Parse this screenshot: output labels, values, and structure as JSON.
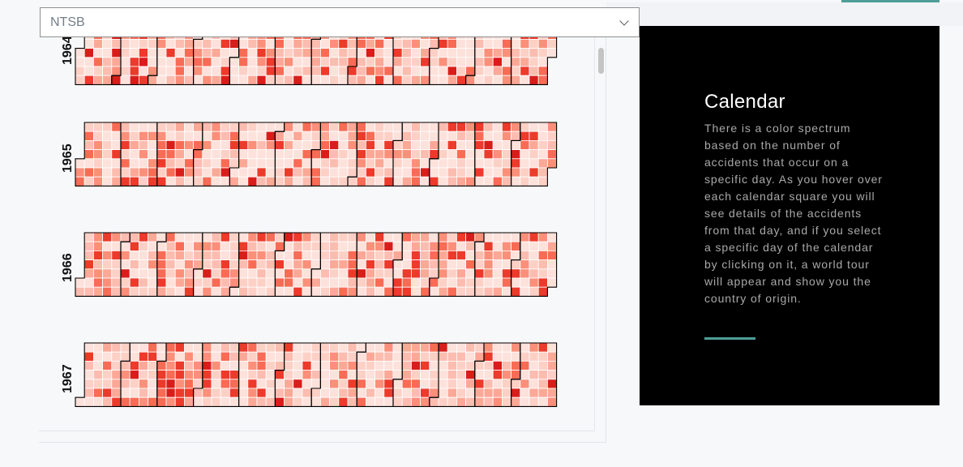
{
  "filter": {
    "selected": "NTSB"
  },
  "calendar": {
    "years": [
      {
        "year": "1964",
        "seed": 1964,
        "offset": 3
      },
      {
        "year": "1965",
        "seed": 1965,
        "offset": 4
      },
      {
        "year": "1966",
        "seed": 1966,
        "offset": 5
      },
      {
        "year": "1967",
        "seed": 1967,
        "offset": 6
      }
    ],
    "colors": [
      "#fff0ed",
      "#fde1db",
      "#fdd0c6",
      "#fcbcb0",
      "#fca897",
      "#fb8f7a",
      "#f86b55",
      "#ec3a2b",
      "#d91d1a"
    ]
  },
  "info": {
    "title": "Calendar",
    "description": "There is a color spectrum based on the number of accidents that occur on a specific day. As you hover over each calendar square you will see details of the accidents from that day, and if you select a specific day of the calendar by clicking on it, a world tour will appear and show you the country of origin."
  }
}
